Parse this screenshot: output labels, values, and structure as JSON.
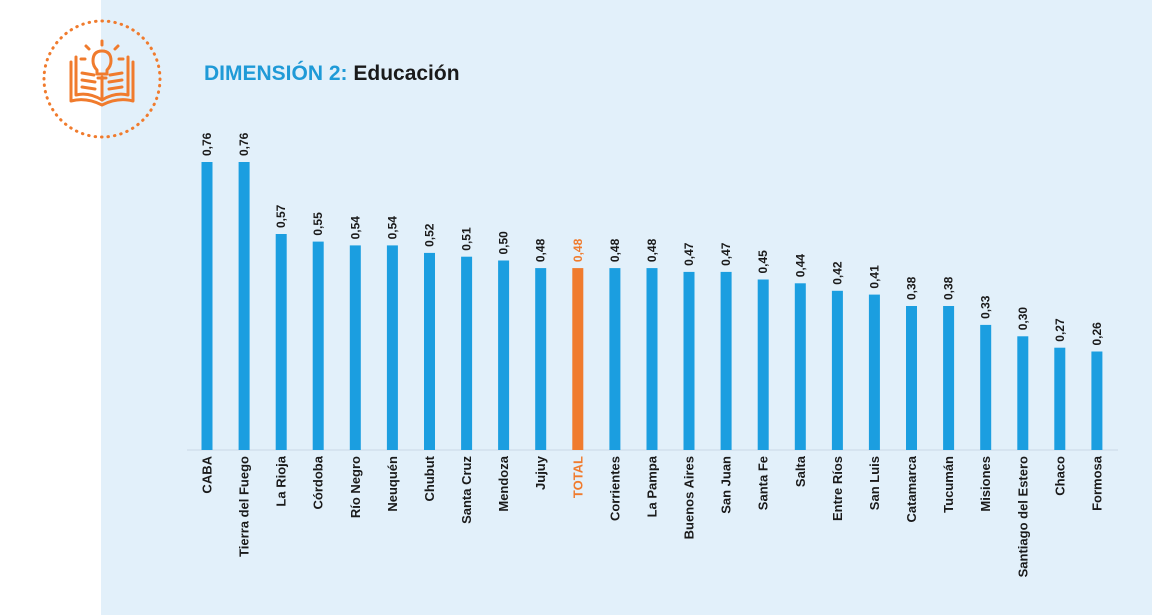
{
  "header": {
    "title_prefix": "DIMENSIÓN 2:",
    "title_suffix": "Educación",
    "icon": "book-lightbulb-icon"
  },
  "colors": {
    "panel_background": "#e2f0fa",
    "bar": "#1b9ee0",
    "highlight": "#f07b2d",
    "title_accent": "#1f9ad7",
    "text": "#1a1a1a"
  },
  "chart_data": {
    "type": "bar",
    "orientation": "vertical",
    "categories": [
      "CABA",
      "Tierra del Fuego",
      "La Rioja",
      "Córdoba",
      "Río Negro",
      "Neuquén",
      "Chubut",
      "Santa Cruz",
      "Mendoza",
      "Jujuy",
      "TOTAL",
      "Corrientes",
      "La Pampa",
      "Buenos Aires",
      "San Juan",
      "Santa Fe",
      "Salta",
      "Entre Ríos",
      "San Luis",
      "Catamarca",
      "Tucumán",
      "Misiones",
      "Santiago del Estero",
      "Chaco",
      "Formosa"
    ],
    "values": [
      0.76,
      0.76,
      0.57,
      0.55,
      0.54,
      0.54,
      0.52,
      0.51,
      0.5,
      0.48,
      0.48,
      0.48,
      0.48,
      0.47,
      0.47,
      0.45,
      0.44,
      0.42,
      0.41,
      0.38,
      0.38,
      0.33,
      0.3,
      0.27,
      0.26
    ],
    "value_labels": [
      "0,76",
      "0,76",
      "0,57",
      "0,55",
      "0,54",
      "0,54",
      "0,52",
      "0,51",
      "0,50",
      "0,48",
      "0,48",
      "0,48",
      "0,48",
      "0,47",
      "0,47",
      "0,45",
      "0,44",
      "0,42",
      "0,41",
      "0,38",
      "0,38",
      "0,33",
      "0,30",
      "0,27",
      "0,26"
    ],
    "highlight_category": "TOTAL",
    "ylim": [
      0,
      0.76
    ],
    "grid": false,
    "legend": "none",
    "title": "",
    "xlabel": "",
    "ylabel": ""
  }
}
